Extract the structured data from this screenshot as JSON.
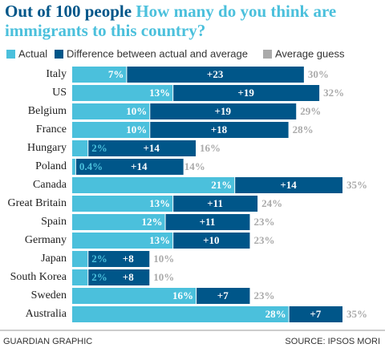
{
  "chart_data": {
    "type": "stacked-bar",
    "title": "Out of 100 people",
    "subtitle": "How many do you think are immigrants to this country?",
    "categories": [
      "Italy",
      "US",
      "Belgium",
      "France",
      "Hungary",
      "Poland",
      "Canada",
      "Great Britain",
      "Spain",
      "Germany",
      "Japan",
      "South Korea",
      "Sweden",
      "Australia"
    ],
    "series": [
      {
        "name": "Actual",
        "color": "#4bc0dc",
        "values": [
          7,
          13,
          10,
          10,
          2,
          0.4,
          21,
          13,
          12,
          13,
          2,
          2,
          16,
          28
        ],
        "value_labels": [
          "7%",
          "13%",
          "10%",
          "10%",
          "2%",
          "0.4%",
          "21%",
          "13%",
          "12%",
          "13%",
          "2%",
          "2%",
          "16%",
          "28%"
        ]
      },
      {
        "name": "Difference between actual and average",
        "color": "#005689",
        "values": [
          23,
          19,
          19,
          18,
          14,
          14,
          14,
          11,
          11,
          10,
          8,
          8,
          7,
          7
        ],
        "value_labels": [
          "+23",
          "+19",
          "+19",
          "+18",
          "+14",
          "+14",
          "+14",
          "+11",
          "+11",
          "+10",
          "+8",
          "+8",
          "+7",
          "+7"
        ]
      },
      {
        "name": "Average guess",
        "color": "#aaaaaa",
        "values": [
          30,
          32,
          29,
          28,
          16,
          14,
          35,
          24,
          23,
          23,
          10,
          10,
          23,
          35
        ],
        "value_labels": [
          "30%",
          "32%",
          "29%",
          "28%",
          "16%",
          "14%",
          "35%",
          "24%",
          "23%",
          "23%",
          "10%",
          "10%",
          "23%",
          "35%"
        ]
      }
    ],
    "credit": "GUARDIAN GRAPHIC",
    "source": "SOURCE: IPSOS MORI"
  }
}
